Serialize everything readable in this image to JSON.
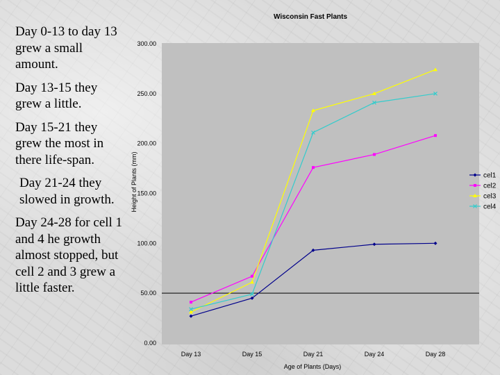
{
  "notes": [
    "Day 0-13 to day 13 grew a small amount.",
    "Day 13-15 they grew a little.",
    "Day 15-21 they grew the most in there life-span.",
    "Day 21-24 they slowed in growth.",
    "Day 24-28 for cell 1 and 4 he growth almost stopped, but cell 2 and 3 grew a little faster."
  ],
  "chart_data": {
    "type": "line",
    "title": "Wisconsin Fast Plants",
    "xlabel": "Age of Plants (Days)",
    "ylabel": "Height of Plants (mm)",
    "categories": [
      "Day 13",
      "Day 15",
      "Day 21",
      "Day 24",
      "Day 28"
    ],
    "ylim": [
      0,
      300
    ],
    "yticks": [
      "0.00",
      "50.00",
      "100.00",
      "150.00",
      "200.00",
      "250.00",
      "300.00"
    ],
    "grid": false,
    "legend": "right",
    "plot_background": "#c0c0c0",
    "series": [
      {
        "name": "cel1",
        "values": [
          27,
          45,
          93,
          99,
          100
        ],
        "color": "#00008b",
        "marker": "diamond"
      },
      {
        "name": "cel2",
        "values": [
          41,
          67,
          176,
          189,
          208
        ],
        "color": "#ff00ff",
        "marker": "square"
      },
      {
        "name": "cel3",
        "values": [
          31,
          61,
          233,
          250,
          274
        ],
        "color": "#ffff00",
        "marker": "triangle"
      },
      {
        "name": "cel4",
        "values": [
          34,
          49,
          211,
          241,
          250
        ],
        "color": "#33cccc",
        "marker": "x"
      }
    ]
  }
}
